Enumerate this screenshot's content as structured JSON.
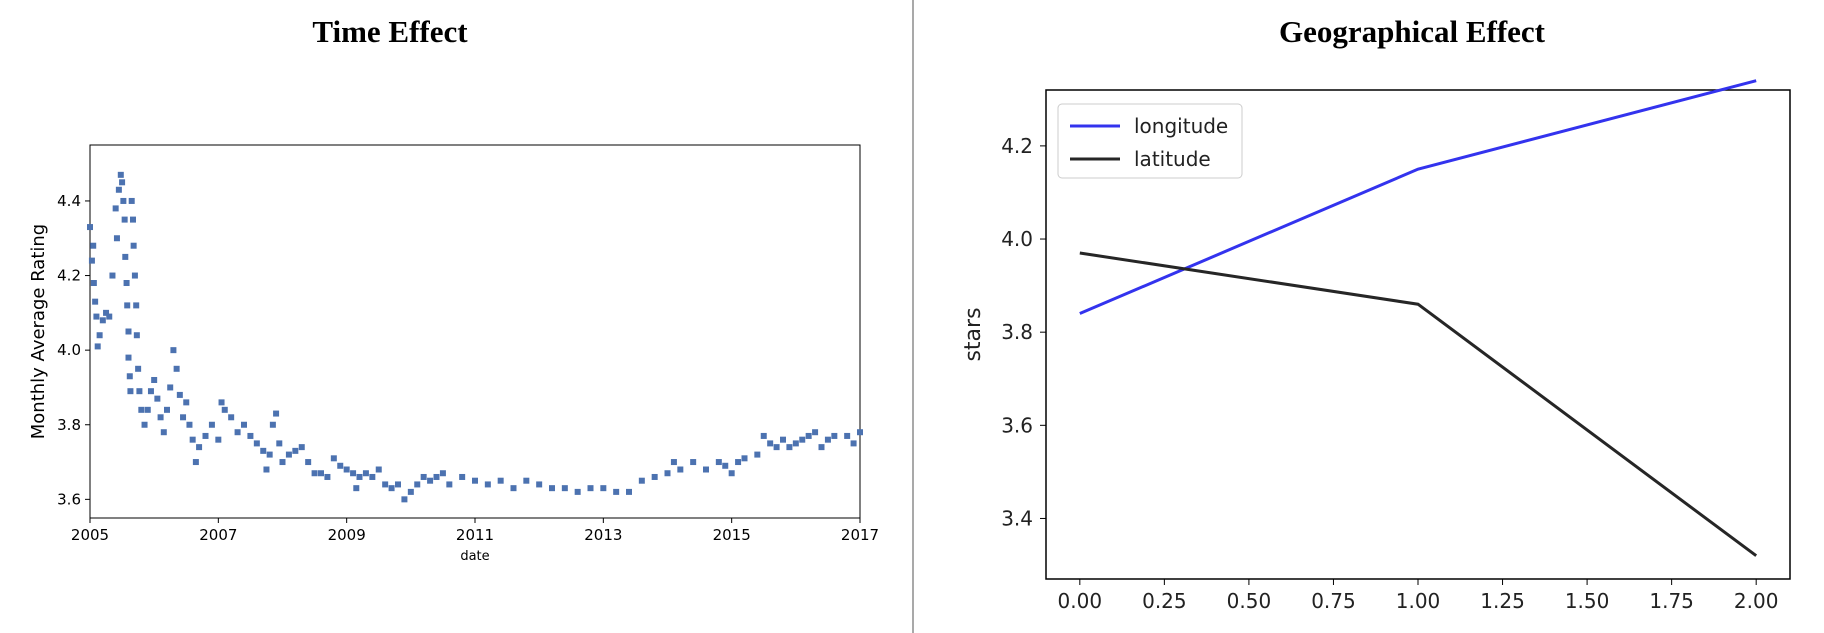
{
  "titles": {
    "left": "Time Effect",
    "right": "Geographical Effect"
  },
  "chart_data": [
    {
      "type": "scatter",
      "title": "Time Effect",
      "xlabel": "date",
      "ylabel": "Monthly Average Rating",
      "xlim": [
        2005,
        2017
      ],
      "ylim": [
        3.55,
        4.55
      ],
      "xticks": [
        2005,
        2007,
        2009,
        2011,
        2013,
        2015,
        2017
      ],
      "yticks": [
        3.6,
        3.8,
        4.0,
        4.2,
        4.4
      ],
      "color": "#4c72b0",
      "points": [
        [
          2005.0,
          4.33
        ],
        [
          2005.03,
          4.24
        ],
        [
          2005.05,
          4.28
        ],
        [
          2005.06,
          4.18
        ],
        [
          2005.08,
          4.13
        ],
        [
          2005.1,
          4.09
        ],
        [
          2005.12,
          4.01
        ],
        [
          2005.15,
          4.04
        ],
        [
          2005.2,
          4.08
        ],
        [
          2005.25,
          4.1
        ],
        [
          2005.3,
          4.09
        ],
        [
          2005.35,
          4.2
        ],
        [
          2005.4,
          4.38
        ],
        [
          2005.42,
          4.3
        ],
        [
          2005.45,
          4.43
        ],
        [
          2005.48,
          4.47
        ],
        [
          2005.5,
          4.45
        ],
        [
          2005.52,
          4.4
        ],
        [
          2005.54,
          4.35
        ],
        [
          2005.55,
          4.25
        ],
        [
          2005.57,
          4.18
        ],
        [
          2005.58,
          4.12
        ],
        [
          2005.6,
          4.05
        ],
        [
          2005.6,
          3.98
        ],
        [
          2005.62,
          3.93
        ],
        [
          2005.63,
          3.89
        ],
        [
          2005.65,
          4.4
        ],
        [
          2005.67,
          4.35
        ],
        [
          2005.68,
          4.28
        ],
        [
          2005.7,
          4.2
        ],
        [
          2005.72,
          4.12
        ],
        [
          2005.73,
          4.04
        ],
        [
          2005.75,
          3.95
        ],
        [
          2005.77,
          3.89
        ],
        [
          2005.8,
          3.84
        ],
        [
          2005.85,
          3.8
        ],
        [
          2005.9,
          3.84
        ],
        [
          2005.95,
          3.89
        ],
        [
          2006.0,
          3.92
        ],
        [
          2006.05,
          3.87
        ],
        [
          2006.1,
          3.82
        ],
        [
          2006.15,
          3.78
        ],
        [
          2006.2,
          3.84
        ],
        [
          2006.25,
          3.9
        ],
        [
          2006.3,
          4.0
        ],
        [
          2006.35,
          3.95
        ],
        [
          2006.4,
          3.88
        ],
        [
          2006.45,
          3.82
        ],
        [
          2006.5,
          3.86
        ],
        [
          2006.55,
          3.8
        ],
        [
          2006.6,
          3.76
        ],
        [
          2006.65,
          3.7
        ],
        [
          2006.7,
          3.74
        ],
        [
          2006.8,
          3.77
        ],
        [
          2006.9,
          3.8
        ],
        [
          2007.0,
          3.76
        ],
        [
          2007.05,
          3.86
        ],
        [
          2007.1,
          3.84
        ],
        [
          2007.2,
          3.82
        ],
        [
          2007.3,
          3.78
        ],
        [
          2007.4,
          3.8
        ],
        [
          2007.5,
          3.77
        ],
        [
          2007.6,
          3.75
        ],
        [
          2007.7,
          3.73
        ],
        [
          2007.75,
          3.68
        ],
        [
          2007.8,
          3.72
        ],
        [
          2007.85,
          3.8
        ],
        [
          2007.9,
          3.83
        ],
        [
          2007.95,
          3.75
        ],
        [
          2008.0,
          3.7
        ],
        [
          2008.1,
          3.72
        ],
        [
          2008.2,
          3.73
        ],
        [
          2008.3,
          3.74
        ],
        [
          2008.4,
          3.7
        ],
        [
          2008.5,
          3.67
        ],
        [
          2008.6,
          3.67
        ],
        [
          2008.7,
          3.66
        ],
        [
          2008.8,
          3.71
        ],
        [
          2008.9,
          3.69
        ],
        [
          2009.0,
          3.68
        ],
        [
          2009.1,
          3.67
        ],
        [
          2009.15,
          3.63
        ],
        [
          2009.2,
          3.66
        ],
        [
          2009.3,
          3.67
        ],
        [
          2009.4,
          3.66
        ],
        [
          2009.5,
          3.68
        ],
        [
          2009.6,
          3.64
        ],
        [
          2009.7,
          3.63
        ],
        [
          2009.8,
          3.64
        ],
        [
          2009.9,
          3.6
        ],
        [
          2010.0,
          3.62
        ],
        [
          2010.1,
          3.64
        ],
        [
          2010.2,
          3.66
        ],
        [
          2010.3,
          3.65
        ],
        [
          2010.4,
          3.66
        ],
        [
          2010.5,
          3.67
        ],
        [
          2010.6,
          3.64
        ],
        [
          2010.8,
          3.66
        ],
        [
          2011.0,
          3.65
        ],
        [
          2011.2,
          3.64
        ],
        [
          2011.4,
          3.65
        ],
        [
          2011.6,
          3.63
        ],
        [
          2011.8,
          3.65
        ],
        [
          2012.0,
          3.64
        ],
        [
          2012.2,
          3.63
        ],
        [
          2012.4,
          3.63
        ],
        [
          2012.6,
          3.62
        ],
        [
          2012.8,
          3.63
        ],
        [
          2013.0,
          3.63
        ],
        [
          2013.2,
          3.62
        ],
        [
          2013.4,
          3.62
        ],
        [
          2013.6,
          3.65
        ],
        [
          2013.8,
          3.66
        ],
        [
          2014.0,
          3.67
        ],
        [
          2014.1,
          3.7
        ],
        [
          2014.2,
          3.68
        ],
        [
          2014.4,
          3.7
        ],
        [
          2014.6,
          3.68
        ],
        [
          2014.8,
          3.7
        ],
        [
          2014.9,
          3.69
        ],
        [
          2015.0,
          3.67
        ],
        [
          2015.1,
          3.7
        ],
        [
          2015.2,
          3.71
        ],
        [
          2015.4,
          3.72
        ],
        [
          2015.5,
          3.77
        ],
        [
          2015.6,
          3.75
        ],
        [
          2015.7,
          3.74
        ],
        [
          2015.8,
          3.76
        ],
        [
          2015.9,
          3.74
        ],
        [
          2016.0,
          3.75
        ],
        [
          2016.1,
          3.76
        ],
        [
          2016.2,
          3.77
        ],
        [
          2016.3,
          3.78
        ],
        [
          2016.4,
          3.74
        ],
        [
          2016.5,
          3.76
        ],
        [
          2016.6,
          3.77
        ],
        [
          2016.8,
          3.77
        ],
        [
          2016.9,
          3.75
        ],
        [
          2017.0,
          3.78
        ]
      ]
    },
    {
      "type": "line",
      "title": "Geographical Effect",
      "xlabel": "",
      "ylabel": "stars",
      "xlim": [
        -0.1,
        2.1
      ],
      "ylim": [
        3.27,
        4.32
      ],
      "xticks": [
        0.0,
        0.25,
        0.5,
        0.75,
        1.0,
        1.25,
        1.5,
        1.75,
        2.0
      ],
      "xtick_labels": [
        "0.00",
        "0.25",
        "0.50",
        "0.75",
        "1.00",
        "1.25",
        "1.50",
        "1.75",
        "2.00"
      ],
      "yticks": [
        3.4,
        3.6,
        3.8,
        4.0,
        4.2
      ],
      "ytick_labels": [
        "3.4",
        "3.6",
        "3.8",
        "4.0",
        "4.2"
      ],
      "legend_position": "top-left",
      "series": [
        {
          "name": "longitude",
          "color": "#3333ee",
          "x": [
            0,
            1,
            2
          ],
          "y": [
            3.84,
            4.15,
            4.34
          ]
        },
        {
          "name": "latitude",
          "color": "#262626",
          "x": [
            0,
            1,
            2
          ],
          "y": [
            3.97,
            3.86,
            3.32
          ]
        }
      ]
    }
  ]
}
